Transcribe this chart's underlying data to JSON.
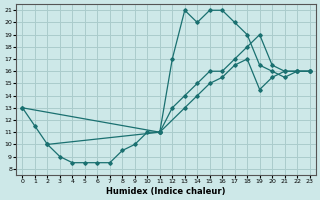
{
  "xlabel": "Humidex (Indice chaleur)",
  "xlim": [
    -0.5,
    23.5
  ],
  "ylim": [
    7.5,
    21.5
  ],
  "xticks": [
    0,
    1,
    2,
    3,
    4,
    5,
    6,
    7,
    8,
    9,
    10,
    11,
    12,
    13,
    14,
    15,
    16,
    17,
    18,
    19,
    20,
    21,
    22,
    23
  ],
  "yticks": [
    8,
    9,
    10,
    11,
    12,
    13,
    14,
    15,
    16,
    17,
    18,
    19,
    20,
    21
  ],
  "background_color": "#cde8e8",
  "grid_color": "#aacccc",
  "line_color": "#1a7070",
  "lines": [
    {
      "x": [
        0,
        1,
        2,
        3,
        4,
        5,
        6,
        7,
        8,
        9,
        10,
        11
      ],
      "y": [
        13,
        11.5,
        10,
        9,
        8.5,
        8.5,
        8.5,
        8.5,
        9.5,
        10,
        11,
        11
      ]
    },
    {
      "x": [
        11,
        12,
        13,
        14,
        15,
        16,
        17,
        18,
        19,
        20,
        21,
        22,
        23
      ],
      "y": [
        11,
        17,
        21,
        20,
        21,
        21,
        20,
        19,
        16.5,
        16,
        15.5,
        16,
        16
      ]
    },
    {
      "x": [
        0,
        11,
        12,
        13,
        14,
        15,
        16,
        17,
        18,
        19,
        20,
        21,
        22,
        23
      ],
      "y": [
        13,
        11,
        13,
        14,
        15,
        16,
        16,
        17,
        18,
        19,
        16.5,
        16,
        16,
        16
      ]
    },
    {
      "x": [
        2,
        11,
        13,
        14,
        15,
        16,
        17,
        18,
        19,
        20,
        21,
        22,
        23
      ],
      "y": [
        10,
        11,
        13,
        14,
        15,
        15.5,
        16.5,
        17,
        14.5,
        15.5,
        16,
        16,
        16
      ]
    }
  ]
}
